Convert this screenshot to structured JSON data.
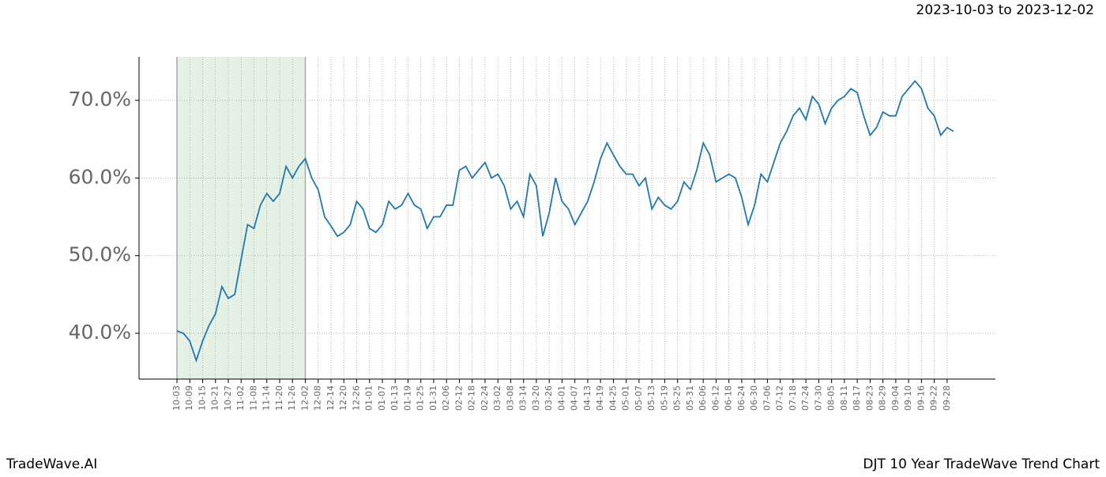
{
  "chart_data": {
    "type": "line",
    "title": "2023-10-03 to 2023-12-02",
    "footer_left": "TradeWave.AI",
    "footer_right": "DJT 10 Year TradeWave Trend Chart",
    "categories": [
      "10-03",
      null,
      "10-09",
      null,
      "10-15",
      null,
      "10-21",
      null,
      "10-27",
      null,
      "11-02",
      null,
      "11-08",
      null,
      "11-14",
      null,
      "11-20",
      null,
      "11-26",
      null,
      "12-02",
      null,
      "12-08",
      null,
      "12-14",
      null,
      "12-20",
      null,
      "12-26",
      null,
      "01-01",
      null,
      "01-07",
      null,
      "01-13",
      null,
      "01-19",
      null,
      "01-25",
      null,
      "01-31",
      null,
      "02-06",
      null,
      "02-12",
      null,
      "02-18",
      null,
      "02-24",
      null,
      "03-02",
      null,
      "03-08",
      null,
      "03-14",
      null,
      "03-20",
      null,
      "03-26",
      null,
      "04-01",
      null,
      "04-07",
      null,
      "04-13",
      null,
      "04-19",
      null,
      "04-25",
      null,
      "05-01",
      null,
      "05-07",
      null,
      "05-13",
      null,
      "05-19",
      null,
      "05-25",
      null,
      "05-31",
      null,
      "06-06",
      null,
      "06-12",
      null,
      "06-18",
      null,
      "06-24",
      null,
      "06-30",
      null,
      "07-06",
      null,
      "07-12",
      null,
      "07-18",
      null,
      "07-24",
      null,
      "07-30",
      null,
      "08-05",
      null,
      "08-11",
      null,
      "08-17",
      null,
      "08-23",
      null,
      "08-29",
      null,
      "09-04",
      null,
      "09-10",
      null,
      "09-16",
      null,
      "09-22",
      null,
      "09-28",
      null
    ],
    "series": [
      {
        "name": "DJT",
        "color": "#1f77b4",
        "values": [
          40.3,
          40.0,
          39.0,
          36.5,
          39.0,
          41.0,
          42.5,
          46.0,
          44.5,
          45.0,
          49.5,
          54.0,
          53.5,
          56.5,
          58.0,
          57.0,
          58.0,
          61.5,
          60.0,
          61.5,
          62.5,
          60.0,
          58.5,
          55.0,
          53.8,
          52.5,
          53.0,
          54.0,
          57.0,
          56.0,
          53.5,
          53.0,
          54.0,
          57.0,
          56.0,
          56.5,
          58.0,
          56.5,
          56.0,
          53.5,
          55.0,
          55.0,
          56.5,
          56.5,
          61.0,
          61.5,
          60.0,
          61.0,
          62.0,
          60.0,
          60.5,
          59.0,
          56.0,
          57.0,
          55.0,
          60.5,
          59.0,
          52.5,
          55.5,
          60.0,
          57.0,
          56.0,
          54.0,
          55.5,
          57.0,
          59.5,
          62.5,
          64.5,
          63.0,
          61.5,
          60.5,
          60.5,
          59.0,
          60.0,
          56.0,
          57.5,
          56.5,
          56.0,
          57.0,
          59.5,
          58.5,
          61.0,
          64.5,
          63.0,
          59.5,
          60.0,
          60.5,
          60.0,
          57.5,
          54.0,
          56.5,
          60.5,
          59.5,
          62.0,
          64.5,
          66.0,
          68.0,
          69.0,
          67.5,
          70.5,
          69.5,
          67.0,
          69.0,
          70.0,
          70.5,
          71.5,
          71.0,
          68.0,
          65.5,
          66.5,
          68.5,
          68.0,
          68.0,
          70.5,
          71.5,
          72.5,
          71.5,
          69.0,
          68.0,
          65.5,
          66.5,
          66.0
        ]
      }
    ],
    "shade": {
      "from": "10-03",
      "to": "12-02",
      "color": "#d5e8d4"
    },
    "ylim": [
      34.1,
      75.6
    ],
    "yticks": [
      {
        "value": 40,
        "label": "40.0%"
      },
      {
        "value": 50,
        "label": "50.0%"
      },
      {
        "value": 60,
        "label": "60.0%"
      },
      {
        "value": 70,
        "label": "70.0%"
      }
    ],
    "grid": true
  }
}
